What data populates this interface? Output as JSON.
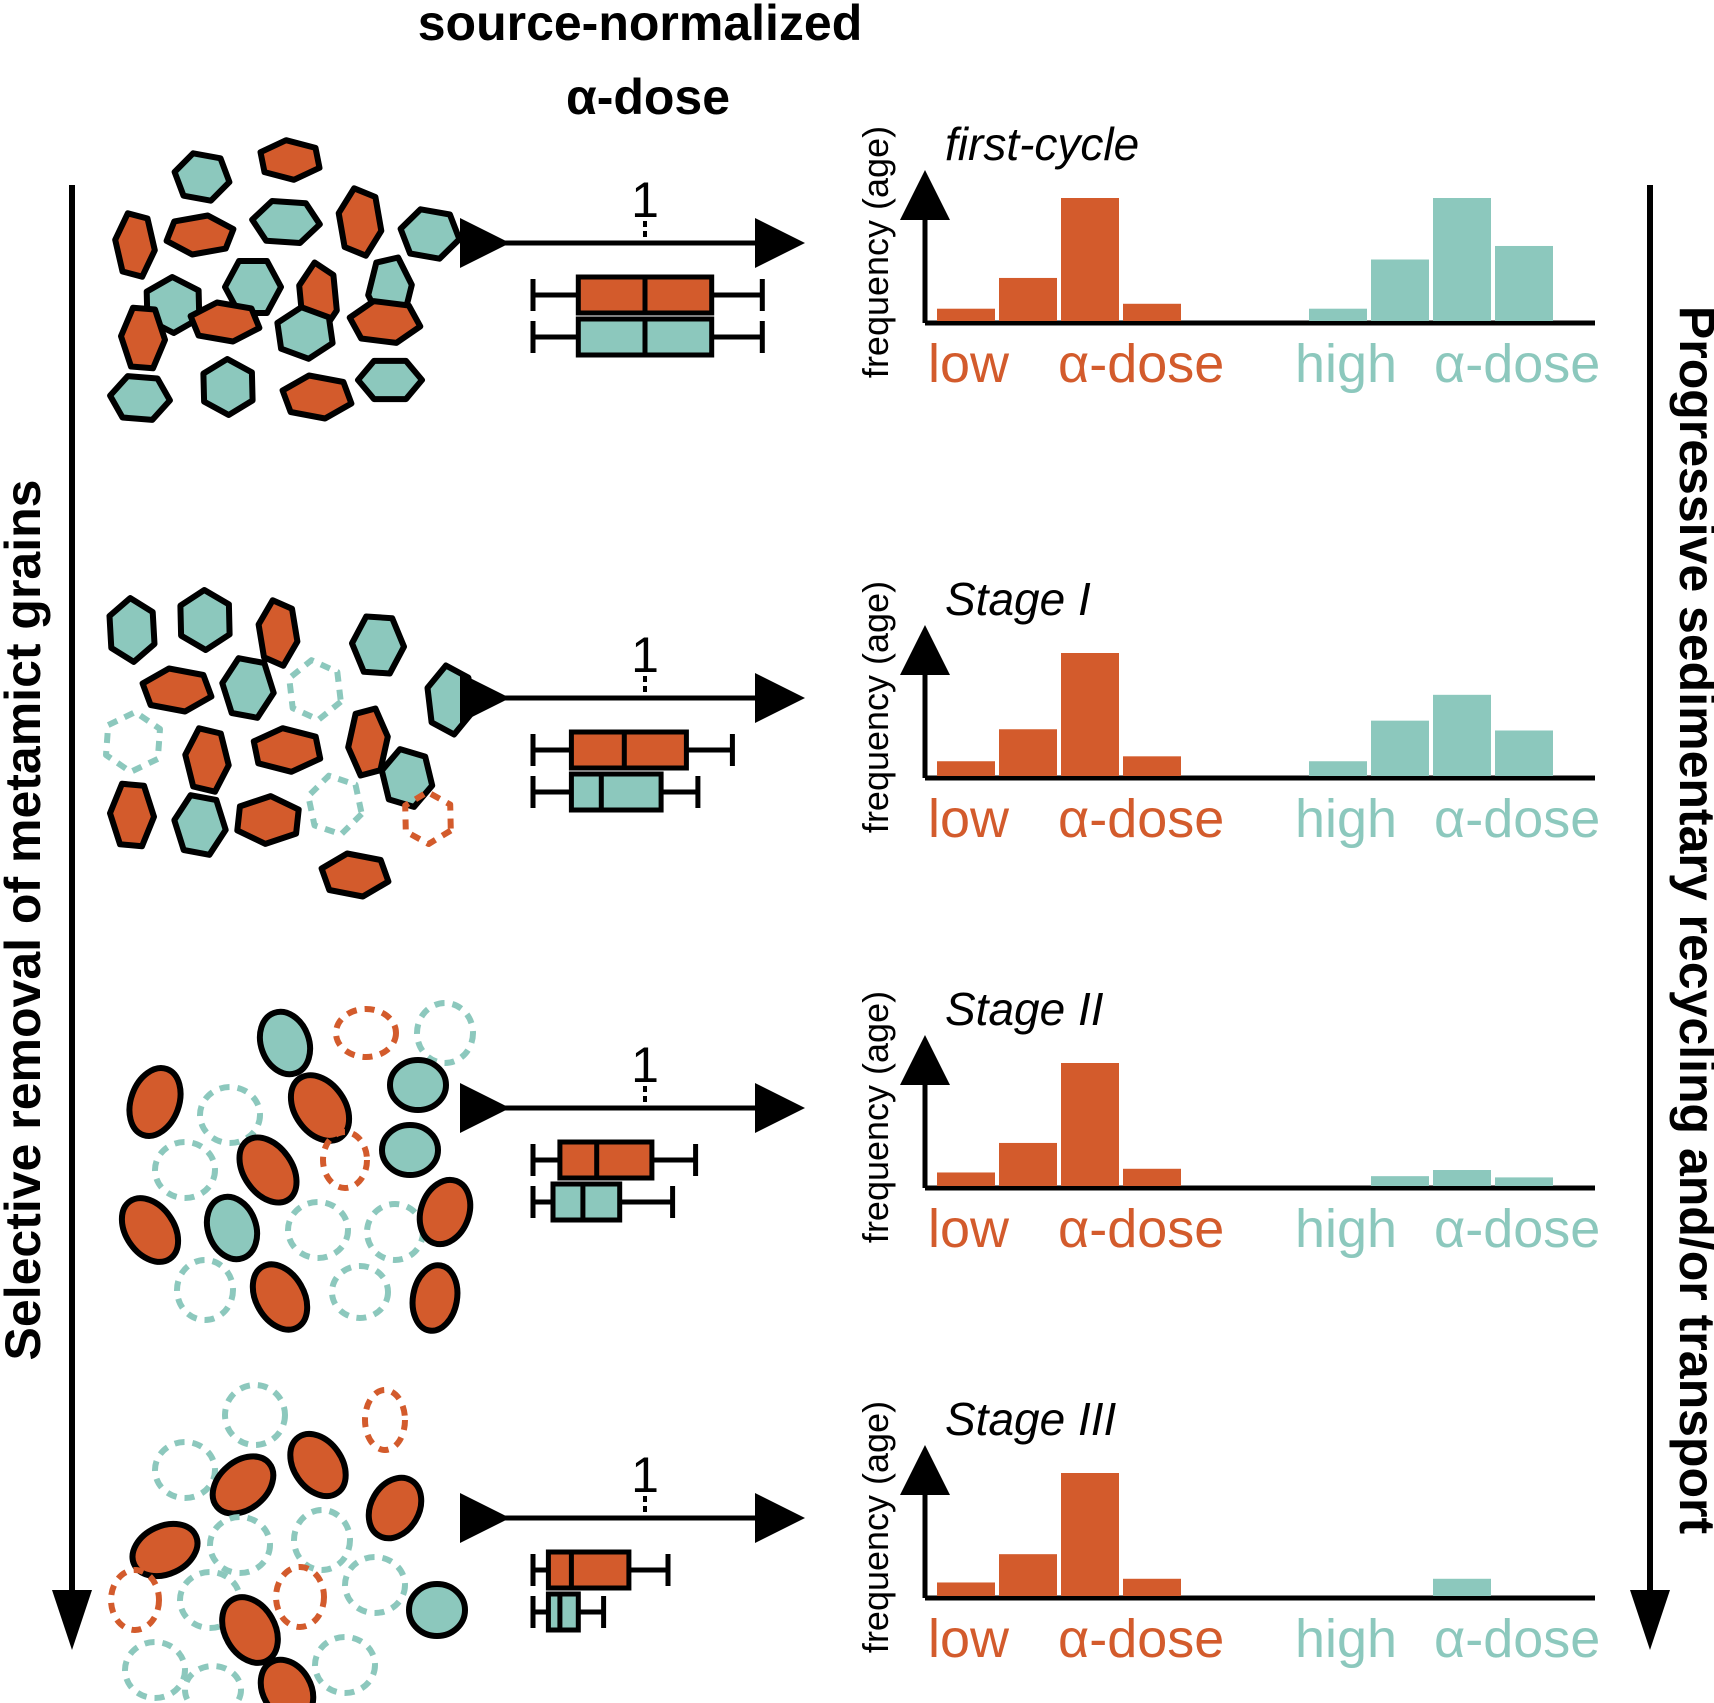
{
  "colors": {
    "low": "#D35B2C",
    "high": "#8CC8BD",
    "ink": "#000000"
  },
  "header": {
    "line1": "source-normalized",
    "line2": "α-dose"
  },
  "left_axis_label": "Selective removal of metamict grains",
  "right_axis_label": "Progressive sedimentary recycling and/or transport",
  "boxplot_center_label": "1",
  "hist_ylabel": "frequency (age)",
  "xlabels": {
    "low": "low",
    "low_dose": "α-dose",
    "high": "high",
    "high_dose": "α-dose"
  },
  "chart_data": [
    {
      "type": "bar",
      "title": "first-cycle",
      "ylabel": "frequency (age)",
      "low_series": [
        10,
        35,
        100,
        14
      ],
      "high_series": [
        10,
        50,
        100,
        61
      ],
      "boxplot_low": {
        "min": 0.5,
        "q1": 0.71,
        "median": 1.0,
        "q3": 1.29,
        "max": 1.51
      },
      "boxplot_high": {
        "min": 0.5,
        "q1": 0.71,
        "median": 1.0,
        "q3": 1.29,
        "max": 1.51
      }
    },
    {
      "type": "bar",
      "title": "Stage I",
      "ylabel": "frequency (age)",
      "low_series": [
        12,
        38,
        100,
        16
      ],
      "high_series": [
        12,
        45,
        66,
        37
      ],
      "boxplot_low": {
        "min": 0.5,
        "q1": 0.68,
        "median": 0.91,
        "q3": 1.18,
        "max": 1.38
      },
      "boxplot_high": {
        "min": 0.5,
        "q1": 0.68,
        "median": 0.81,
        "q3": 1.07,
        "max": 1.23
      }
    },
    {
      "type": "bar",
      "title": "Stage II",
      "ylabel": "frequency (age)",
      "low_series": [
        11,
        35,
        100,
        14
      ],
      "high_series": [
        0,
        8,
        13,
        7
      ],
      "boxplot_low": {
        "min": 0.5,
        "q1": 0.63,
        "median": 0.79,
        "q3": 1.03,
        "max": 1.22
      },
      "boxplot_high": {
        "min": 0.5,
        "q1": 0.6,
        "median": 0.73,
        "q3": 0.89,
        "max": 1.12
      }
    },
    {
      "type": "bar",
      "title": "Stage III",
      "ylabel": "frequency (age)",
      "low_series": [
        11,
        34,
        100,
        14
      ],
      "high_series": [
        0,
        0,
        14,
        0
      ],
      "boxplot_low": {
        "min": 0.5,
        "q1": 0.58,
        "median": 0.68,
        "q3": 0.93,
        "max": 1.1
      },
      "boxplot_high": {
        "min": 0.5,
        "q1": 0.58,
        "median": 0.63,
        "q3": 0.71,
        "max": 0.82
      }
    }
  ]
}
